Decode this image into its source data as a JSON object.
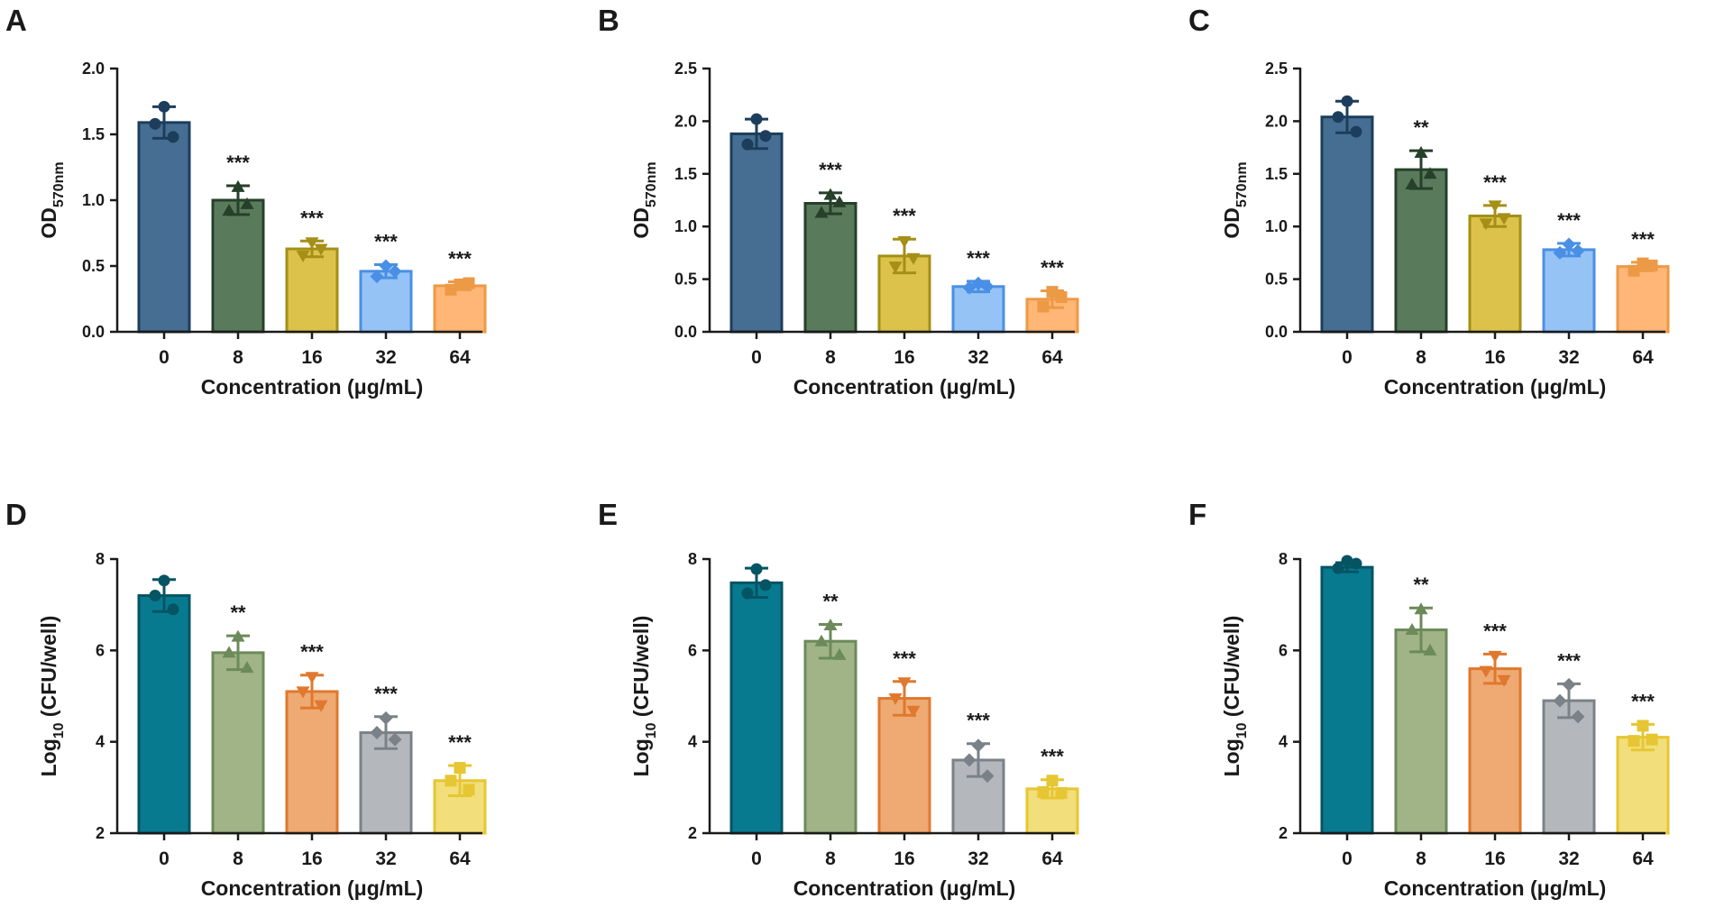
{
  "figure": {
    "category_axis_label": "Concentration (μg/mL)",
    "od_label": {
      "base": "OD",
      "sub": "570nm"
    },
    "cfu_label": {
      "base": "Log",
      "sub": "10",
      "rest": " (CFU/well)"
    }
  },
  "chart_data": [
    {
      "panel": "A",
      "type": "bar",
      "ylabel": "OD570nm",
      "xlabel": "Concentration (μg/mL)",
      "categories": [
        "0",
        "8",
        "16",
        "32",
        "64"
      ],
      "values": [
        1.59,
        1.0,
        0.63,
        0.46,
        0.35
      ],
      "errors": [
        0.12,
        0.11,
        0.06,
        0.05,
        0.03
      ],
      "points": [
        [
          1.71,
          1.58,
          1.48
        ],
        [
          1.1,
          0.92,
          0.97
        ],
        [
          0.68,
          0.58,
          0.63
        ],
        [
          0.5,
          0.42,
          0.46
        ],
        [
          0.36,
          0.32,
          0.37
        ]
      ],
      "significance": [
        "",
        "***",
        "***",
        "***",
        "***"
      ],
      "ylim": [
        0,
        2.0
      ],
      "yticks": [
        "0.0",
        "0.5",
        "1.0",
        "1.5",
        "2.0"
      ],
      "colors": [
        "#466e92",
        "#5a7a5c",
        "#dcc24a",
        "#96c3f5",
        "#ffb676"
      ],
      "edge_colors": [
        "#1c3e5c",
        "#26402a",
        "#a58f16",
        "#4a8fe6",
        "#ec9a46"
      ]
    },
    {
      "panel": "B",
      "type": "bar",
      "ylabel": "OD570nm",
      "xlabel": "Concentration (μg/mL)",
      "categories": [
        "0",
        "8",
        "16",
        "32",
        "64"
      ],
      "values": [
        1.88,
        1.22,
        0.72,
        0.43,
        0.31
      ],
      "errors": [
        0.14,
        0.1,
        0.16,
        0.05,
        0.08
      ],
      "points": [
        [
          2.02,
          1.78,
          1.86
        ],
        [
          1.3,
          1.13,
          1.23
        ],
        [
          0.86,
          0.62,
          0.7
        ],
        [
          0.46,
          0.42,
          0.43
        ],
        [
          0.38,
          0.24,
          0.33
        ]
      ],
      "significance": [
        "",
        "***",
        "***",
        "***",
        "***"
      ],
      "ylim": [
        0,
        2.5
      ],
      "yticks": [
        "0.0",
        "0.5",
        "1.0",
        "1.5",
        "2.0",
        "2.5"
      ],
      "colors": [
        "#466e92",
        "#5a7a5c",
        "#dcc24a",
        "#96c3f5",
        "#ffb676"
      ],
      "edge_colors": [
        "#1c3e5c",
        "#26402a",
        "#a58f16",
        "#4a8fe6",
        "#ec9a46"
      ]
    },
    {
      "panel": "C",
      "type": "bar",
      "ylabel": "OD570nm",
      "xlabel": "Concentration (μg/mL)",
      "categories": [
        "0",
        "8",
        "16",
        "32",
        "64"
      ],
      "values": [
        2.04,
        1.54,
        1.1,
        0.78,
        0.62
      ],
      "errors": [
        0.15,
        0.18,
        0.1,
        0.06,
        0.04
      ],
      "points": [
        [
          2.19,
          2.04,
          1.9
        ],
        [
          1.7,
          1.4,
          1.5
        ],
        [
          1.2,
          1.03,
          1.08
        ],
        [
          0.83,
          0.75,
          0.77
        ],
        [
          0.65,
          0.58,
          0.63
        ]
      ],
      "significance": [
        "",
        "**",
        "***",
        "***",
        "***"
      ],
      "ylim": [
        0,
        2.5
      ],
      "yticks": [
        "0.0",
        "0.5",
        "1.0",
        "1.5",
        "2.0",
        "2.5"
      ],
      "colors": [
        "#466e92",
        "#5a7a5c",
        "#dcc24a",
        "#96c3f5",
        "#ffb676"
      ],
      "edge_colors": [
        "#1c3e5c",
        "#26402a",
        "#a58f16",
        "#4a8fe6",
        "#ec9a46"
      ]
    },
    {
      "panel": "D",
      "type": "bar",
      "ylabel": "Log10 (CFU/well)",
      "xlabel": "Concentration (μg/mL)",
      "categories": [
        "0",
        "8",
        "16",
        "32",
        "64"
      ],
      "values": [
        7.2,
        5.95,
        5.1,
        4.2,
        3.15
      ],
      "errors": [
        0.35,
        0.37,
        0.36,
        0.35,
        0.33
      ],
      "points": [
        [
          7.53,
          7.2,
          6.9
        ],
        [
          6.3,
          5.95,
          5.62
        ],
        [
          5.42,
          5.1,
          4.8
        ],
        [
          4.52,
          4.2,
          4.05
        ],
        [
          3.43,
          3.15,
          2.95
        ]
      ],
      "significance": [
        "",
        "**",
        "***",
        "***",
        "***"
      ],
      "ylim": [
        2,
        8
      ],
      "yticks": [
        "2",
        "4",
        "6",
        "8"
      ],
      "colors": [
        "#087a90",
        "#a0b488",
        "#eeaa72",
        "#b4b8bc",
        "#f2de7a"
      ],
      "edge_colors": [
        "#055464",
        "#6c8a5a",
        "#e0782e",
        "#7a8288",
        "#e6c632"
      ]
    },
    {
      "panel": "E",
      "type": "bar",
      "ylabel": "Log10 (CFU/well)",
      "xlabel": "Concentration (μg/mL)",
      "categories": [
        "0",
        "8",
        "16",
        "32",
        "64"
      ],
      "values": [
        7.48,
        6.2,
        4.95,
        3.6,
        2.97
      ],
      "errors": [
        0.32,
        0.37,
        0.37,
        0.36,
        0.2
      ],
      "points": [
        [
          7.78,
          7.25,
          7.43
        ],
        [
          6.55,
          6.2,
          5.9
        ],
        [
          5.3,
          4.95,
          4.68
        ],
        [
          3.92,
          3.6,
          3.25
        ],
        [
          3.15,
          2.9,
          2.88
        ]
      ],
      "significance": [
        "",
        "**",
        "***",
        "***",
        "***"
      ],
      "ylim": [
        2,
        8
      ],
      "yticks": [
        "2",
        "4",
        "6",
        "8"
      ],
      "colors": [
        "#087a90",
        "#a0b488",
        "#eeaa72",
        "#b4b8bc",
        "#f2de7a"
      ],
      "edge_colors": [
        "#055464",
        "#6c8a5a",
        "#e0782e",
        "#7a8288",
        "#e6c632"
      ]
    },
    {
      "panel": "F",
      "type": "bar",
      "ylabel": "Log10 (CFU/well)",
      "xlabel": "Concentration (μg/mL)",
      "categories": [
        "0",
        "8",
        "16",
        "32",
        "64"
      ],
      "values": [
        7.82,
        6.45,
        5.6,
        4.9,
        4.1
      ],
      "errors": [
        0.1,
        0.48,
        0.32,
        0.37,
        0.28
      ],
      "points": [
        [
          7.96,
          7.8,
          7.9
        ],
        [
          6.9,
          6.45,
          6.0
        ],
        [
          5.88,
          5.55,
          5.35
        ],
        [
          5.25,
          4.9,
          4.55
        ],
        [
          4.35,
          4.02,
          4.05
        ]
      ],
      "significance": [
        "",
        "**",
        "***",
        "***",
        "***"
      ],
      "ylim": [
        2,
        8
      ],
      "yticks": [
        "2",
        "4",
        "6",
        "8"
      ],
      "colors": [
        "#087a90",
        "#a0b488",
        "#eeaa72",
        "#b4b8bc",
        "#f2de7a"
      ],
      "edge_colors": [
        "#055464",
        "#6c8a5a",
        "#e0782e",
        "#7a8288",
        "#e6c632"
      ]
    }
  ]
}
